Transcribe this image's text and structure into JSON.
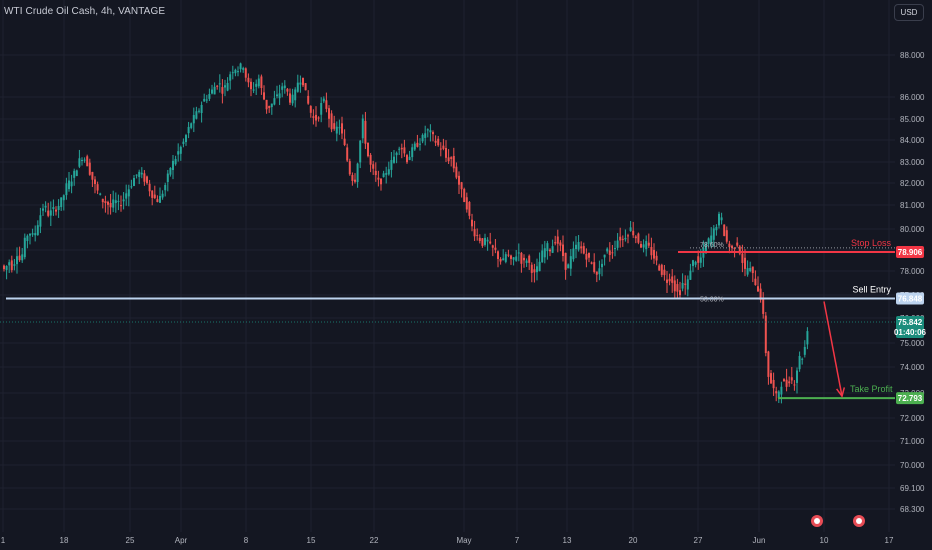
{
  "header": {
    "title": "WTI Crude Oil Cash, 4h, VANTAGE",
    "currency": "USD"
  },
  "colors": {
    "background": "#141722",
    "grid": "#1e2230",
    "up": "#26a69a",
    "down": "#ef5350",
    "entry": "#bcd3ee",
    "stop": "#f23645",
    "target": "#4caf50",
    "current": "#1b8c7c"
  },
  "chart_data": {
    "type": "candlestick",
    "y_ticks": [
      "68.300",
      "69.100",
      "70.000",
      "71.000",
      "72.000",
      "73.000",
      "74.000",
      "75.000",
      "76.000",
      "77.000",
      "78.000",
      "79.000",
      "80.000",
      "81.000",
      "82.000",
      "83.000",
      "84.000",
      "85.000",
      "86.000",
      "88.000"
    ],
    "y_tick_values": [
      68.3,
      69.1,
      70,
      71,
      72,
      73,
      74,
      75,
      76,
      77,
      78,
      79,
      80,
      81,
      82,
      83,
      84,
      85,
      86,
      88
    ],
    "x_ticks": [
      "1",
      "18",
      "25",
      "Apr",
      "8",
      "15",
      "22",
      "May",
      "7",
      "13",
      "20",
      "27",
      "Jun",
      "10",
      "17"
    ],
    "path": [
      [
        0,
        77.9
      ],
      [
        3,
        78.3
      ],
      [
        6,
        78.0
      ],
      [
        10,
        78.5
      ],
      [
        14,
        78.1
      ],
      [
        18,
        78.9
      ],
      [
        22,
        78.4
      ],
      [
        26,
        79.4
      ],
      [
        30,
        79.9
      ],
      [
        35,
        79.6
      ],
      [
        40,
        80.4
      ],
      [
        45,
        81.0
      ],
      [
        50,
        80.6
      ],
      [
        55,
        80.8
      ],
      [
        60,
        81.0
      ],
      [
        64,
        81.3
      ],
      [
        68,
        81.9
      ],
      [
        72,
        82.1
      ],
      [
        76,
        82.5
      ],
      [
        80,
        83.0
      ],
      [
        84,
        83.3
      ],
      [
        88,
        83.0
      ],
      [
        92,
        82.4
      ],
      [
        96,
        81.9
      ],
      [
        100,
        81.5
      ],
      [
        104,
        81.2
      ],
      [
        108,
        81.1
      ],
      [
        112,
        80.9
      ],
      [
        116,
        81.2
      ],
      [
        120,
        81.0
      ],
      [
        124,
        81.2
      ],
      [
        128,
        81.6
      ],
      [
        132,
        81.9
      ],
      [
        136,
        82.3
      ],
      [
        140,
        82.5
      ],
      [
        144,
        82.3
      ],
      [
        148,
        82.0
      ],
      [
        152,
        81.6
      ],
      [
        156,
        81.3
      ],
      [
        160,
        81.2
      ],
      [
        164,
        81.6
      ],
      [
        168,
        82.1
      ],
      [
        172,
        82.8
      ],
      [
        176,
        83.1
      ],
      [
        180,
        83.5
      ],
      [
        184,
        83.8
      ],
      [
        188,
        84.3
      ],
      [
        192,
        84.8
      ],
      [
        196,
        85.1
      ],
      [
        200,
        85.4
      ],
      [
        204,
        85.8
      ],
      [
        208,
        86.0
      ],
      [
        212,
        86.2
      ],
      [
        216,
        86.5
      ],
      [
        220,
        86.7
      ],
      [
        224,
        86.3
      ],
      [
        228,
        86.6
      ],
      [
        232,
        87.2
      ],
      [
        236,
        87.4
      ],
      [
        240,
        87.3
      ],
      [
        244,
        87.6
      ],
      [
        248,
        86.8
      ],
      [
        252,
        86.3
      ],
      [
        256,
        86.5
      ],
      [
        260,
        86.9
      ],
      [
        264,
        86.1
      ],
      [
        268,
        85.5
      ],
      [
        272,
        85.6
      ],
      [
        276,
        85.9
      ],
      [
        280,
        86.1
      ],
      [
        284,
        86.6
      ],
      [
        288,
        86.3
      ],
      [
        292,
        85.8
      ],
      [
        296,
        86.1
      ],
      [
        300,
        86.9
      ],
      [
        304,
        86.8
      ],
      [
        308,
        85.9
      ],
      [
        312,
        85.3
      ],
      [
        316,
        84.9
      ],
      [
        320,
        85.2
      ],
      [
        324,
        85.9
      ],
      [
        328,
        85.5
      ],
      [
        332,
        84.8
      ],
      [
        336,
        84.3
      ],
      [
        340,
        84.8
      ],
      [
        344,
        84.1
      ],
      [
        348,
        83.2
      ],
      [
        352,
        82.3
      ],
      [
        356,
        82.1
      ],
      [
        360,
        83.4
      ],
      [
        364,
        84.9
      ],
      [
        368,
        83.5
      ],
      [
        372,
        82.8
      ],
      [
        376,
        82.4
      ],
      [
        380,
        82.0
      ],
      [
        384,
        82.2
      ],
      [
        388,
        82.6
      ],
      [
        392,
        82.9
      ],
      [
        396,
        83.3
      ],
      [
        400,
        83.8
      ],
      [
        404,
        83.6
      ],
      [
        408,
        83.1
      ],
      [
        412,
        83.4
      ],
      [
        416,
        83.7
      ],
      [
        420,
        83.9
      ],
      [
        424,
        84.1
      ],
      [
        428,
        84.5
      ],
      [
        432,
        84.3
      ],
      [
        436,
        84.0
      ],
      [
        440,
        83.7
      ],
      [
        444,
        83.6
      ],
      [
        448,
        83.1
      ],
      [
        452,
        83.2
      ],
      [
        456,
        82.6
      ],
      [
        460,
        82.0
      ],
      [
        464,
        81.4
      ],
      [
        468,
        81.0
      ],
      [
        472,
        80.2
      ],
      [
        476,
        79.8
      ],
      [
        480,
        79.6
      ],
      [
        484,
        79.3
      ],
      [
        488,
        79.5
      ],
      [
        492,
        79.1
      ],
      [
        496,
        79.0
      ],
      [
        500,
        78.6
      ],
      [
        504,
        78.4
      ],
      [
        508,
        78.9
      ],
      [
        512,
        78.4
      ],
      [
        516,
        78.7
      ],
      [
        520,
        78.9
      ],
      [
        524,
        78.3
      ],
      [
        528,
        78.6
      ],
      [
        532,
        78.2
      ],
      [
        536,
        77.8
      ],
      [
        540,
        78.3
      ],
      [
        544,
        78.9
      ],
      [
        548,
        79.2
      ],
      [
        552,
        79.0
      ],
      [
        556,
        79.5
      ],
      [
        560,
        79.3
      ],
      [
        564,
        78.8
      ],
      [
        568,
        78.0
      ],
      [
        572,
        78.6
      ],
      [
        576,
        79.1
      ],
      [
        580,
        79.3
      ],
      [
        584,
        78.9
      ],
      [
        588,
        78.7
      ],
      [
        592,
        78.4
      ],
      [
        596,
        78.0
      ],
      [
        600,
        77.9
      ],
      [
        604,
        78.6
      ],
      [
        608,
        79.0
      ],
      [
        612,
        78.8
      ],
      [
        616,
        79.2
      ],
      [
        620,
        79.6
      ],
      [
        624,
        79.5
      ],
      [
        628,
        79.8
      ],
      [
        632,
        80.0
      ],
      [
        636,
        79.7
      ],
      [
        640,
        79.4
      ],
      [
        644,
        79.1
      ],
      [
        648,
        79.3
      ],
      [
        652,
        78.9
      ],
      [
        656,
        78.6
      ],
      [
        660,
        78.2
      ],
      [
        664,
        77.9
      ],
      [
        668,
        77.6
      ],
      [
        672,
        77.8
      ],
      [
        676,
        77.3
      ],
      [
        680,
        77.0
      ],
      [
        684,
        77.5
      ],
      [
        688,
        77.3
      ],
      [
        692,
        78.2
      ],
      [
        696,
        78.6
      ],
      [
        700,
        78.3
      ],
      [
        704,
        78.9
      ],
      [
        708,
        79.3
      ],
      [
        712,
        79.6
      ],
      [
        716,
        80.0
      ],
      [
        720,
        80.5
      ],
      [
        724,
        80.3
      ],
      [
        726,
        79.6
      ],
      [
        730,
        79.2
      ],
      [
        734,
        79.0
      ],
      [
        738,
        79.4
      ],
      [
        742,
        78.8
      ],
      [
        746,
        78.0
      ],
      [
        750,
        78.2
      ],
      [
        754,
        77.8
      ],
      [
        758,
        77.4
      ],
      [
        762,
        76.9
      ],
      [
        764,
        76.3
      ],
      [
        766,
        75.2
      ],
      [
        768,
        74.2
      ],
      [
        770,
        73.6
      ],
      [
        772,
        73.4
      ],
      [
        774,
        73.3
      ],
      [
        776,
        72.9
      ],
      [
        778,
        72.8
      ],
      [
        780,
        73.1
      ],
      [
        782,
        73.3
      ],
      [
        784,
        73.6
      ],
      [
        786,
        73.2
      ],
      [
        788,
        73.3
      ],
      [
        790,
        73.5
      ],
      [
        792,
        73.7
      ],
      [
        794,
        73.3
      ],
      [
        796,
        73.5
      ],
      [
        798,
        73.9
      ],
      [
        800,
        74.2
      ],
      [
        802,
        74.6
      ],
      [
        804,
        74.4
      ],
      [
        806,
        74.8
      ],
      [
        808,
        75.5
      ],
      [
        810,
        75.8
      ]
    ],
    "annotations": {
      "stop_loss": {
        "label": "Stop Loss",
        "price": 78.906,
        "price_label": "78.906"
      },
      "sell_entry": {
        "label": "Sell Entry",
        "price": 76.848,
        "price_label": "76.848"
      },
      "take_profit": {
        "label": "Take Profit",
        "price": 72.793,
        "price_label": "72.793"
      },
      "current_price": {
        "price": 75.842,
        "price_label": "75.842",
        "countdown": "01:40:06"
      },
      "fib_upper": {
        "label": "78.60%",
        "price": 79.1
      },
      "fib_lower": {
        "label": "50.00%",
        "price": 76.85
      }
    }
  }
}
